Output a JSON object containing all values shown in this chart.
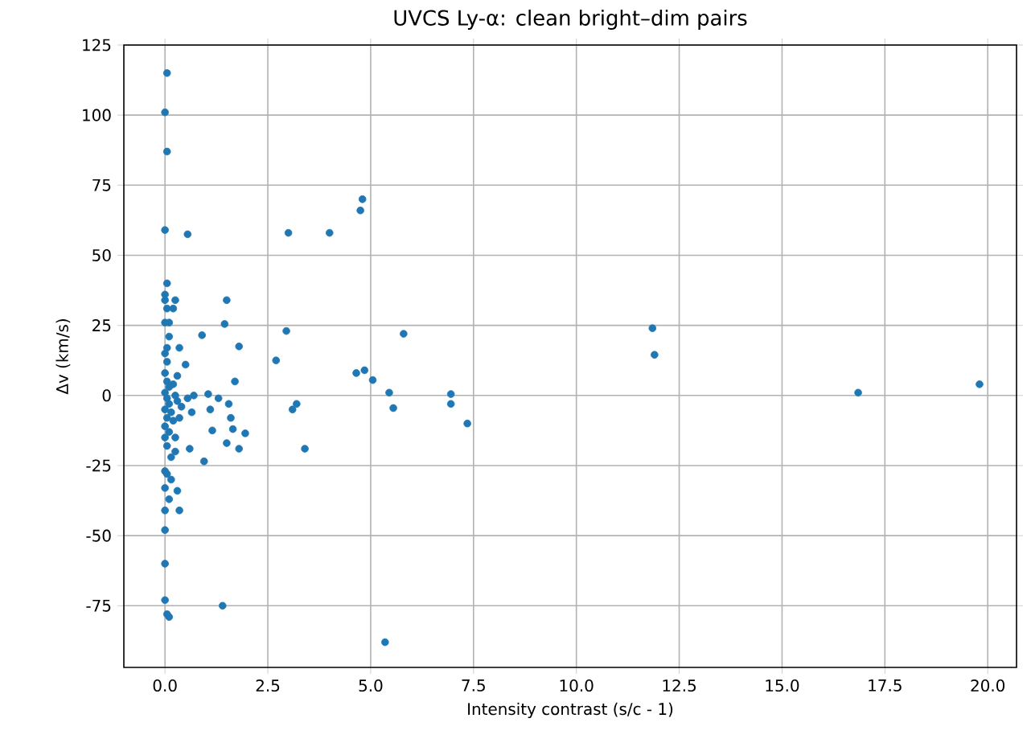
{
  "chart_data": {
    "type": "scatter",
    "title": "UVCS Ly-α: clean bright–dim pairs",
    "xlabel": "Intensity contrast (s/c - 1)",
    "ylabel": "Δv (km/s)",
    "xlim": [
      -1,
      20.7
    ],
    "ylim": [
      -97,
      125
    ],
    "xticks": [
      {
        "value": 0,
        "label": "0.0"
      },
      {
        "value": 2.5,
        "label": "2.5"
      },
      {
        "value": 5,
        "label": "5.0"
      },
      {
        "value": 7.5,
        "label": "7.5"
      },
      {
        "value": 10,
        "label": "10.0"
      },
      {
        "value": 12.5,
        "label": "12.5"
      },
      {
        "value": 15,
        "label": "15.0"
      },
      {
        "value": 17.5,
        "label": "17.5"
      },
      {
        "value": 20,
        "label": "20.0"
      }
    ],
    "yticks": [
      -75,
      -50,
      -25,
      0,
      25,
      50,
      75,
      100,
      125
    ],
    "grid": true,
    "marker": "circle",
    "series": [
      {
        "color": "#1f77b4",
        "x": [
          0.05,
          0.0,
          0.05,
          0.0,
          0.55,
          3.0,
          4.0,
          4.75,
          4.8,
          2.95,
          2.7,
          3.2,
          3.1,
          3.4,
          4.65,
          4.85,
          5.05,
          5.8,
          5.45,
          5.55,
          6.95,
          6.95,
          7.35,
          5.35,
          11.85,
          11.9,
          16.85,
          19.8,
          1.5,
          1.45,
          1.8,
          0.9,
          1.7,
          1.55,
          1.6,
          1.65,
          1.95,
          1.8,
          1.5,
          1.3,
          1.05,
          1.1,
          1.15,
          0.95,
          0.6,
          0.55,
          0.65,
          0.7,
          0.5,
          0.35,
          0.25,
          0.2,
          0.3,
          1.4,
          0.05,
          0.0,
          0.0,
          0.05,
          0.0,
          0.1,
          0.1,
          0.05,
          0.0,
          0.05,
          0.0,
          0.05,
          0.1,
          0.0,
          0.05,
          0.1,
          0.0,
          0.15,
          0.05,
          0.2,
          0.0,
          0.1,
          0.0,
          0.25,
          0.05,
          0.25,
          0.15,
          0.3,
          0.35,
          0.0,
          0.05,
          0.0,
          0.1,
          0.0,
          0.0,
          0.0,
          0.0,
          0.1,
          0.05,
          0.3,
          0.4,
          0.25,
          0.2,
          0.35,
          0.15
        ],
        "values": [
          115,
          101,
          87,
          59,
          57.5,
          58,
          58,
          66,
          70,
          23,
          12.5,
          -3,
          -5,
          -19,
          8,
          9,
          5.5,
          22,
          1,
          -4.5,
          0.5,
          -3,
          -10,
          -88,
          24,
          14.5,
          1,
          4,
          34,
          25.5,
          17.5,
          21.5,
          5,
          -3,
          -8,
          -12,
          -13.5,
          -19,
          -17,
          -1,
          0.5,
          -5,
          -12.5,
          -23.5,
          -19,
          -1,
          -6,
          0,
          11,
          17,
          34,
          31,
          7,
          -75,
          40,
          36,
          34,
          31,
          26,
          26,
          21,
          17,
          15,
          12,
          8,
          5,
          3,
          1,
          -1,
          -3,
          -5,
          -6,
          -8,
          -9,
          -11,
          -13,
          -15,
          -15,
          -18,
          -20,
          -22,
          -34,
          -41,
          -27,
          -28,
          -33,
          -37,
          -41,
          -48,
          -60,
          -73,
          -79,
          -78,
          -2,
          -4,
          0,
          4,
          -8,
          -30
        ]
      }
    ]
  }
}
